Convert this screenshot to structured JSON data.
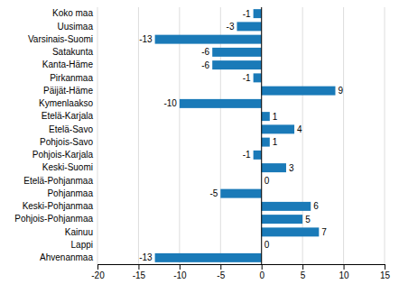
{
  "chart_data": {
    "type": "bar",
    "orientation": "horizontal",
    "categories": [
      "Koko maa",
      "Uusimaa",
      "Varsinais-Suomi",
      "Satakunta",
      "Kanta-Häme",
      "Pirkanmaa",
      "Päijät-Häme",
      "Kymenlaakso",
      "Etelä-Karjala",
      "Etelä-Savo",
      "Pohjois-Savo",
      "Pohjois-Karjala",
      "Keski-Suomi",
      "Etelä-Pohjanmaa",
      "Pohjanmaa",
      "Keski-Pohjanmaa",
      "Pohjois-Pohjanmaa",
      "Kainuu",
      "Lappi",
      "Ahvenanmaa"
    ],
    "values": [
      -1,
      -3,
      -13,
      -6,
      -6,
      -1,
      9,
      -10,
      1,
      4,
      1,
      -1,
      3,
      0,
      -5,
      6,
      5,
      7,
      0,
      -13
    ],
    "color": "#1a7ab8",
    "xlim": [
      -20,
      15
    ],
    "xticks": [
      -20,
      -15,
      -10,
      -5,
      0,
      5,
      10,
      15
    ],
    "grid": true,
    "data_labels": true
  }
}
